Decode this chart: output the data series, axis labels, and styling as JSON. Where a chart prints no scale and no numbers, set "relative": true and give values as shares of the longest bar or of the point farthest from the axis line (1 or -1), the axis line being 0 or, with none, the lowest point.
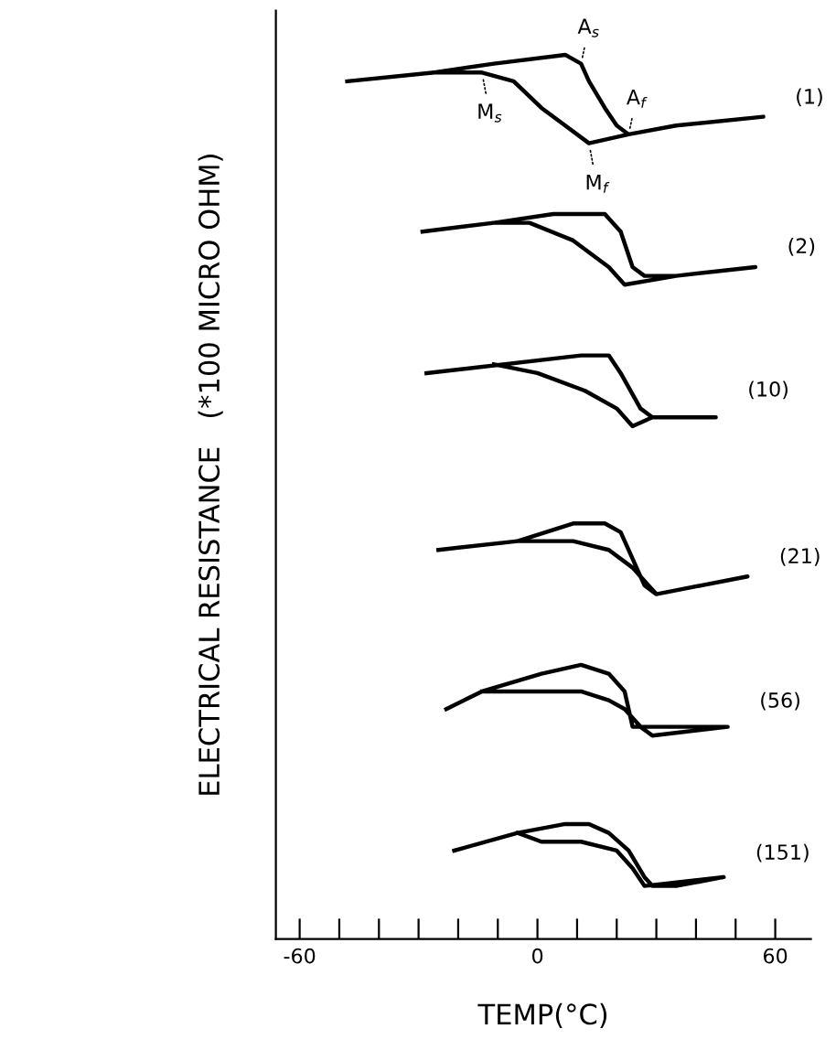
{
  "chart_data": {
    "type": "line",
    "relative": true,
    "xlabel": "TEMP(°C)",
    "ylabel": "ELECTRICAL RESISTANCE   (*100 MICRO OHM)",
    "xlim": [
      -66,
      69
    ],
    "xticks": [
      -60,
      {
        "value": -50,
        "label": null
      },
      {
        "value": -40,
        "label": null
      },
      {
        "value": -30,
        "label": null
      },
      {
        "value": -20,
        "label": null
      },
      {
        "value": -10,
        "label": null
      },
      0,
      {
        "value": 10,
        "label": null
      },
      {
        "value": 20,
        "label": null
      },
      {
        "value": 30,
        "label": null
      },
      {
        "value": 40,
        "label": null
      },
      {
        "value": 50,
        "label": null
      },
      60
    ],
    "grid": false,
    "legend": false,
    "marker": "none",
    "line_style": "solid",
    "series": [
      {
        "name": "(1)",
        "color": "#000000",
        "x": [
          -48,
          -26,
          -11,
          7,
          11,
          13,
          17,
          20,
          23,
          35,
          57,
          35,
          23,
          13,
          7,
          1,
          -6,
          -14,
          -23,
          -26
        ],
        "values": [
          0.97,
          0.98,
          0.99,
          1.0,
          0.99,
          0.97,
          0.94,
          0.92,
          0.91,
          0.92,
          0.93,
          0.92,
          0.91,
          0.9,
          0.92,
          0.94,
          0.97,
          0.98,
          0.98,
          0.98
        ]
      },
      {
        "name": "(2)",
        "color": "#000000",
        "x": [
          -29,
          -11,
          4,
          17,
          21,
          24,
          27,
          35,
          55,
          35,
          22,
          18,
          9,
          -2,
          -11
        ],
        "values": [
          0.8,
          0.81,
          0.82,
          0.82,
          0.8,
          0.76,
          0.75,
          0.75,
          0.76,
          0.75,
          0.74,
          0.76,
          0.79,
          0.81,
          0.81
        ]
      },
      {
        "name": "(10)",
        "color": "#000000",
        "x": [
          -28,
          11,
          18,
          21,
          26,
          29,
          45,
          29,
          24,
          20,
          12,
          0,
          -11
        ],
        "values": [
          0.64,
          0.66,
          0.66,
          0.64,
          0.6,
          0.59,
          0.59,
          0.59,
          0.58,
          0.6,
          0.62,
          0.64,
          0.65
        ]
      },
      {
        "name": "(21)",
        "color": "#000000",
        "x": [
          -25,
          -5,
          9,
          17,
          21,
          24,
          27,
          30,
          53,
          30,
          28,
          24,
          18,
          9,
          -5
        ],
        "values": [
          0.44,
          0.45,
          0.47,
          0.47,
          0.46,
          0.43,
          0.4,
          0.39,
          0.41,
          0.39,
          0.4,
          0.42,
          0.44,
          0.45,
          0.45
        ]
      },
      {
        "name": "(56)",
        "color": "#000000",
        "x": [
          -23,
          -14,
          1,
          11,
          18,
          22,
          24,
          26,
          29,
          48,
          26,
          22,
          18,
          11,
          -3,
          -14
        ],
        "values": [
          0.26,
          0.28,
          0.3,
          0.31,
          0.3,
          0.28,
          0.24,
          0.24,
          0.23,
          0.24,
          0.24,
          0.26,
          0.27,
          0.28,
          0.28,
          0.28
        ]
      },
      {
        "name": "(151)",
        "color": "#000000",
        "x": [
          -21,
          -5,
          7,
          13,
          18,
          23,
          27,
          29,
          35,
          47,
          27,
          24,
          20,
          11,
          1,
          -5
        ],
        "values": [
          0.1,
          0.12,
          0.13,
          0.13,
          0.12,
          0.1,
          0.07,
          0.06,
          0.06,
          0.07,
          0.06,
          0.08,
          0.1,
          0.11,
          0.11,
          0.12
        ]
      }
    ],
    "annotations": [
      {
        "text": "A$_{s}$",
        "x": 11,
        "y": 0.99
      },
      {
        "text": "A$_{f}$",
        "x": 23,
        "y": 0.91
      },
      {
        "text": "M$_{s}$",
        "x": -14,
        "y": 0.98
      },
      {
        "text": "M$_{f}$",
        "x": 13,
        "y": 0.9
      }
    ]
  }
}
